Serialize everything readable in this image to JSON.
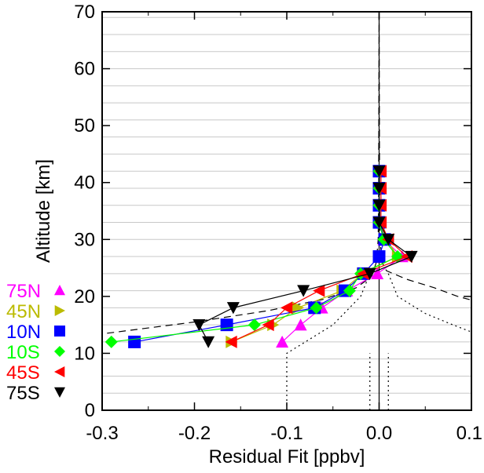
{
  "chart_data": {
    "type": "line",
    "title": "",
    "xlabel": "Residual Fit [ppbv]",
    "ylabel": "Altitude [km]",
    "xlim": [
      -0.3,
      0.1
    ],
    "ylim": [
      0,
      70
    ],
    "x_ticks": [
      "-0.3",
      "-0.2",
      "-0.1",
      "0.0",
      "0.1"
    ],
    "y_ticks": [
      "0",
      "10",
      "20",
      "30",
      "40",
      "50",
      "60",
      "70"
    ],
    "grid": "horizontal",
    "legend_position": "left",
    "series": [
      {
        "name": "75N",
        "color": "#ff00ff",
        "marker": "triangle-up",
        "points": [
          [
            -0.105,
            12
          ],
          [
            -0.085,
            15
          ],
          [
            -0.062,
            18
          ],
          [
            -0.035,
            21
          ],
          [
            -0.002,
            24
          ],
          [
            0.025,
            27
          ],
          [
            0.005,
            30
          ],
          [
            0.0,
            33
          ],
          [
            0.0,
            36
          ],
          [
            0.0,
            39
          ],
          [
            0.0,
            42
          ]
        ]
      },
      {
        "name": "45N",
        "color": "#bbbb00",
        "marker": "triangle-right",
        "points": [
          [
            -0.16,
            12
          ],
          [
            -0.115,
            15
          ],
          [
            -0.088,
            18
          ],
          [
            -0.04,
            21
          ],
          [
            -0.018,
            24
          ],
          [
            0.02,
            27
          ],
          [
            0.008,
            30
          ],
          [
            0.0,
            33
          ],
          [
            0.0,
            36
          ],
          [
            0.0,
            39
          ],
          [
            0.0,
            42
          ]
        ]
      },
      {
        "name": "10N",
        "color": "#0000ff",
        "marker": "square",
        "points": [
          [
            -0.265,
            12
          ],
          [
            -0.165,
            15
          ],
          [
            -0.07,
            18
          ],
          [
            -0.037,
            21
          ],
          [
            -0.017,
            24
          ],
          [
            0.0,
            27
          ],
          [
            0.006,
            30
          ],
          [
            0.0,
            33
          ],
          [
            0.0,
            36
          ],
          [
            0.0,
            39
          ],
          [
            0.0,
            42
          ]
        ]
      },
      {
        "name": "10S",
        "color": "#00ff00",
        "marker": "diamond",
        "points": [
          [
            -0.29,
            12
          ],
          [
            -0.135,
            15
          ],
          [
            -0.068,
            18
          ],
          [
            -0.032,
            21
          ],
          [
            -0.02,
            24
          ],
          [
            0.02,
            27
          ],
          [
            0.005,
            30
          ],
          [
            0.0,
            33
          ],
          [
            0.0,
            36
          ],
          [
            0.0,
            39
          ],
          [
            0.0,
            42
          ]
        ]
      },
      {
        "name": "45S",
        "color": "#ff0000",
        "marker": "triangle-left",
        "points": [
          [
            -0.16,
            12
          ],
          [
            -0.12,
            15
          ],
          [
            -0.1,
            18
          ],
          [
            -0.065,
            21
          ],
          [
            -0.017,
            24
          ],
          [
            0.03,
            27
          ],
          [
            0.01,
            30
          ],
          [
            0.002,
            33
          ],
          [
            0.002,
            36
          ],
          [
            0.002,
            39
          ],
          [
            0.002,
            42
          ]
        ]
      },
      {
        "name": "75S",
        "color": "#000000",
        "marker": "triangle-down",
        "points": [
          [
            -0.185,
            12
          ],
          [
            -0.195,
            15
          ],
          [
            -0.158,
            18
          ],
          [
            -0.082,
            21
          ],
          [
            -0.01,
            24
          ],
          [
            0.035,
            27
          ],
          [
            0.01,
            30
          ],
          [
            0.0,
            33
          ],
          [
            0.0,
            36
          ],
          [
            0.0,
            39
          ],
          [
            0.0,
            42
          ]
        ]
      }
    ],
    "reference_lines": [
      {
        "style": "solid",
        "points": [
          [
            0.0,
            0
          ],
          [
            0.0,
            70
          ]
        ]
      },
      {
        "style": "dashed",
        "points": [
          [
            -0.32,
            13
          ],
          [
            -0.2,
            15.5
          ],
          [
            -0.12,
            17.5
          ],
          [
            -0.06,
            19.5
          ],
          [
            -0.025,
            21.5
          ],
          [
            -0.008,
            23.5
          ],
          [
            -0.003,
            26
          ],
          [
            -0.001,
            30
          ],
          [
            -0.0005,
            40
          ],
          [
            0.0,
            70
          ]
        ]
      },
      {
        "style": "dashed",
        "points": [
          [
            0.0,
            70
          ],
          [
            0.0005,
            40
          ],
          [
            0.001,
            30
          ],
          [
            0.003,
            26
          ],
          [
            0.008,
            24.5
          ],
          [
            0.03,
            23
          ],
          [
            0.06,
            21.5
          ],
          [
            0.085,
            20
          ],
          [
            0.12,
            18.5
          ]
        ]
      },
      {
        "style": "dotted",
        "points": [
          [
            -0.1,
            0
          ],
          [
            -0.1,
            10
          ],
          [
            -0.05,
            15
          ],
          [
            -0.02,
            20
          ],
          [
            -0.01,
            24
          ]
        ]
      },
      {
        "style": "dotted",
        "points": [
          [
            -0.01,
            0
          ],
          [
            -0.01,
            10
          ]
        ]
      },
      {
        "style": "dotted",
        "points": [
          [
            0.01,
            0
          ],
          [
            0.01,
            10
          ]
        ]
      },
      {
        "style": "dotted",
        "points": [
          [
            0.01,
            24
          ],
          [
            0.02,
            20
          ],
          [
            0.05,
            17
          ],
          [
            0.08,
            15
          ],
          [
            0.12,
            12.5
          ]
        ]
      }
    ]
  }
}
